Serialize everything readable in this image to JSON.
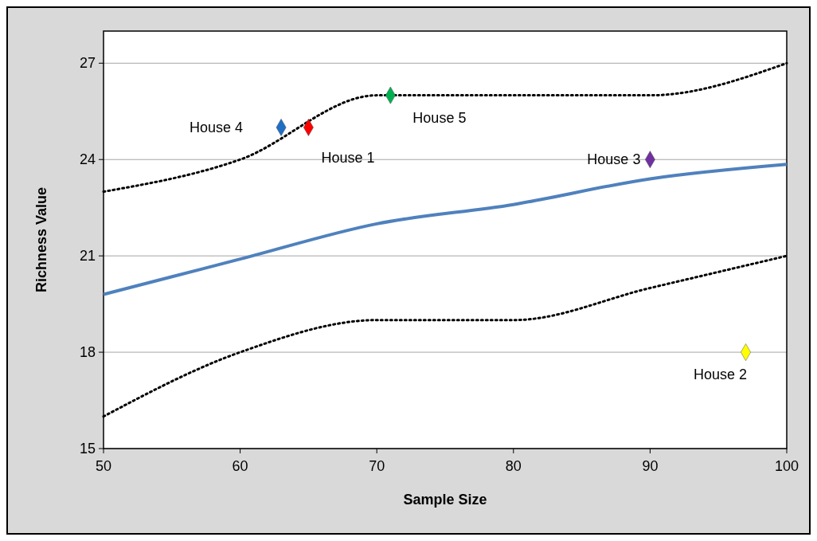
{
  "chart_data": {
    "type": "line",
    "xlabel": "Sample Size",
    "ylabel": "Richness Value",
    "xlim": [
      50,
      100
    ],
    "ylim": [
      15,
      28
    ],
    "xticks": [
      50,
      60,
      70,
      80,
      90,
      100
    ],
    "yticks": [
      15,
      18,
      21,
      24,
      27
    ],
    "grid": "y",
    "series": [
      {
        "color": "#000000",
        "line_style": "dotted",
        "marker": "none",
        "x": [
          50,
          60,
          70,
          80,
          90,
          100
        ],
        "values": [
          23,
          24,
          26,
          26,
          26,
          27
        ]
      },
      {
        "color": "#4f81bd",
        "line_style": "solid",
        "marker": "none",
        "x": [
          50,
          60,
          70,
          80,
          90,
          100
        ],
        "values": [
          19.8,
          20.9,
          22,
          22.6,
          23.4,
          23.85
        ]
      },
      {
        "color": "#000000",
        "line_style": "dotted",
        "marker": "none",
        "x": [
          50,
          60,
          70,
          80,
          90,
          100
        ],
        "values": [
          16,
          18,
          19,
          19,
          20,
          21
        ]
      },
      {
        "type": "scatter",
        "name": "House 4",
        "color": "#1f6fc5",
        "marker": "diamond",
        "x": [
          63
        ],
        "values": [
          25
        ]
      },
      {
        "type": "scatter",
        "name": "House 1",
        "color": "#ff0000",
        "marker": "diamond",
        "x": [
          65
        ],
        "values": [
          25
        ]
      },
      {
        "type": "scatter",
        "name": "House 5",
        "color": "#00b050",
        "marker": "diamond",
        "x": [
          71
        ],
        "values": [
          26
        ]
      },
      {
        "type": "scatter",
        "name": "House 3",
        "color": "#7030a0",
        "marker": "diamond",
        "x": [
          90
        ],
        "values": [
          24
        ]
      },
      {
        "type": "scatter",
        "name": "House 2",
        "color": "#ffff00",
        "marker": "diamond",
        "x": [
          97
        ],
        "values": [
          18
        ]
      }
    ]
  }
}
